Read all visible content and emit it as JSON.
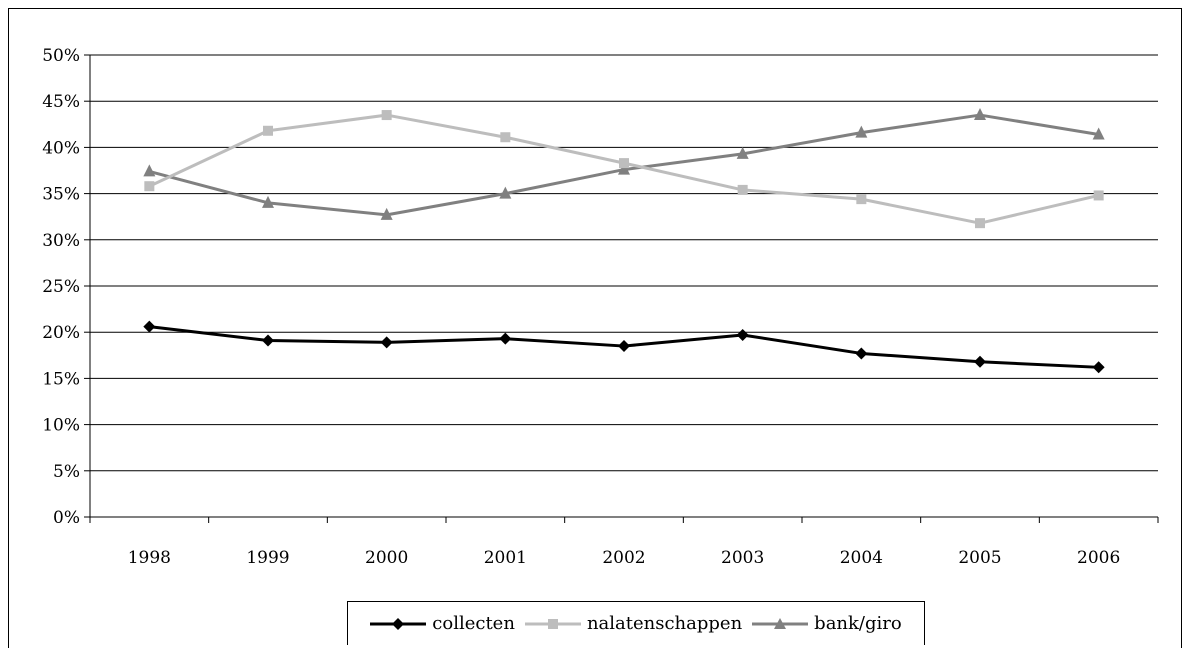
{
  "chart_data": {
    "type": "line",
    "categories": [
      "1998",
      "1999",
      "2000",
      "2001",
      "2002",
      "2003",
      "2004",
      "2005",
      "2006"
    ],
    "ylim": [
      0,
      50
    ],
    "yticks": [
      0,
      5,
      10,
      15,
      20,
      25,
      30,
      35,
      40,
      45,
      50
    ],
    "ytick_labels": [
      "0%",
      "5%",
      "10%",
      "15%",
      "20%",
      "25%",
      "30%",
      "35%",
      "40%",
      "45%",
      "50%"
    ],
    "grid": "horizontal",
    "legend_position": "bottom",
    "series": [
      {
        "name": "collecten",
        "color": "#000000",
        "marker": "diamond",
        "values": [
          20.6,
          19.1,
          18.9,
          19.3,
          18.5,
          19.7,
          17.7,
          16.8,
          16.2
        ]
      },
      {
        "name": "nalatenschappen",
        "color": "#bdbdbd",
        "marker": "square",
        "values": [
          35.8,
          41.8,
          43.5,
          41.1,
          38.3,
          35.4,
          34.4,
          31.8,
          34.8
        ]
      },
      {
        "name": "bank/giro",
        "color": "#808080",
        "marker": "triangle",
        "values": [
          37.4,
          34.0,
          32.7,
          35.0,
          37.6,
          39.3,
          41.6,
          43.5,
          41.4
        ]
      }
    ]
  }
}
